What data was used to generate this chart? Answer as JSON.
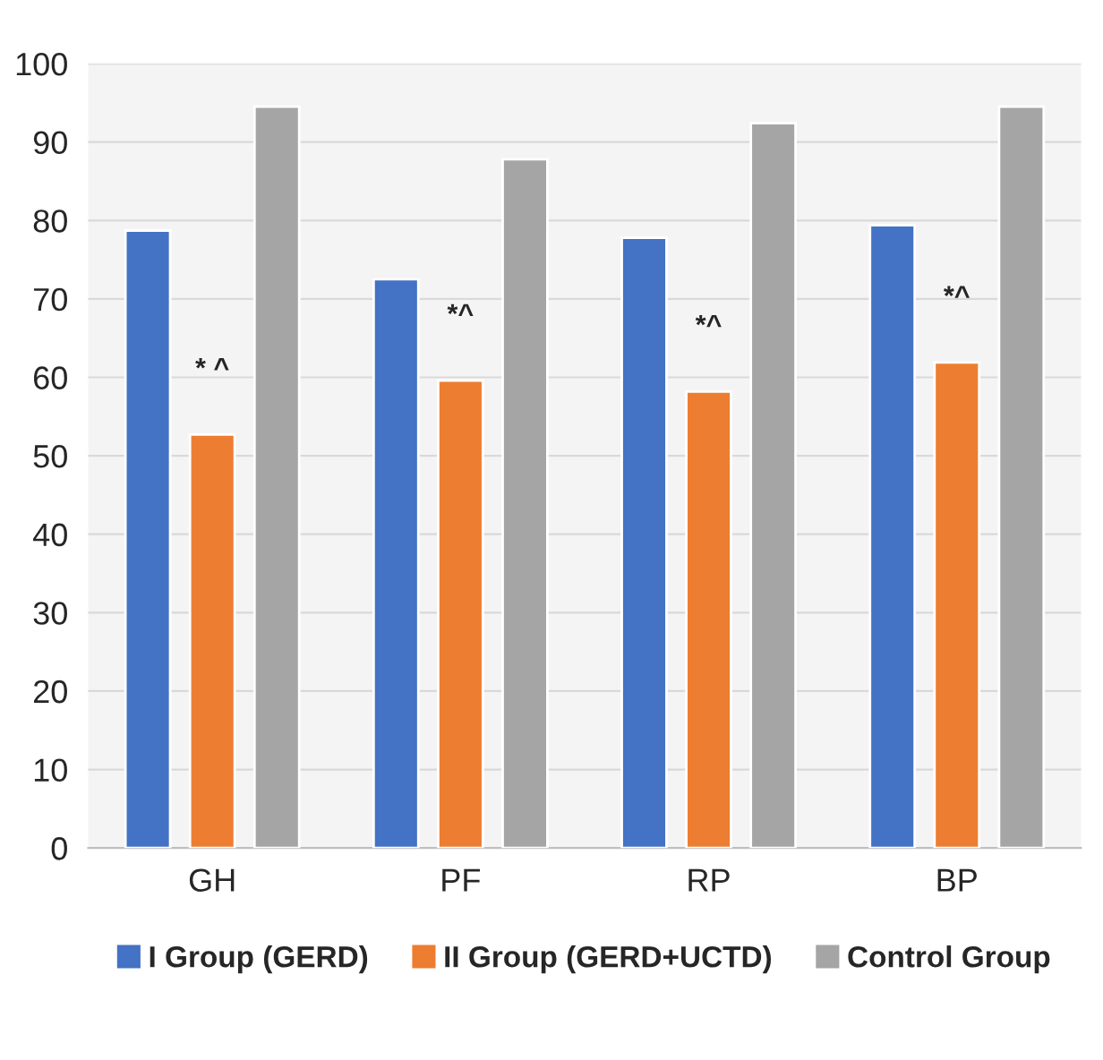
{
  "chart_data": {
    "type": "bar",
    "categories": [
      "GH",
      "PF",
      "RP",
      "BP"
    ],
    "series": [
      {
        "name": "I Group (GERD)",
        "color": "#4472c4",
        "values": [
          78.7,
          72.5,
          77.8,
          79.4
        ]
      },
      {
        "name": "II Group (GERD+UCTD)",
        "color": "#ed7d31",
        "values": [
          52.7,
          59.6,
          58.2,
          61.9
        ]
      },
      {
        "name": "Control Group",
        "color": "#a5a5a5",
        "values": [
          94.5,
          87.8,
          92.4,
          94.5
        ]
      }
    ],
    "ylim": [
      0,
      100
    ],
    "yticks": [
      0,
      10,
      20,
      30,
      40,
      50,
      60,
      70,
      80,
      90,
      100
    ],
    "annotations": [
      "* ^",
      "*^",
      "*^",
      "*^"
    ],
    "grid": "y",
    "legend": "bottom"
  }
}
